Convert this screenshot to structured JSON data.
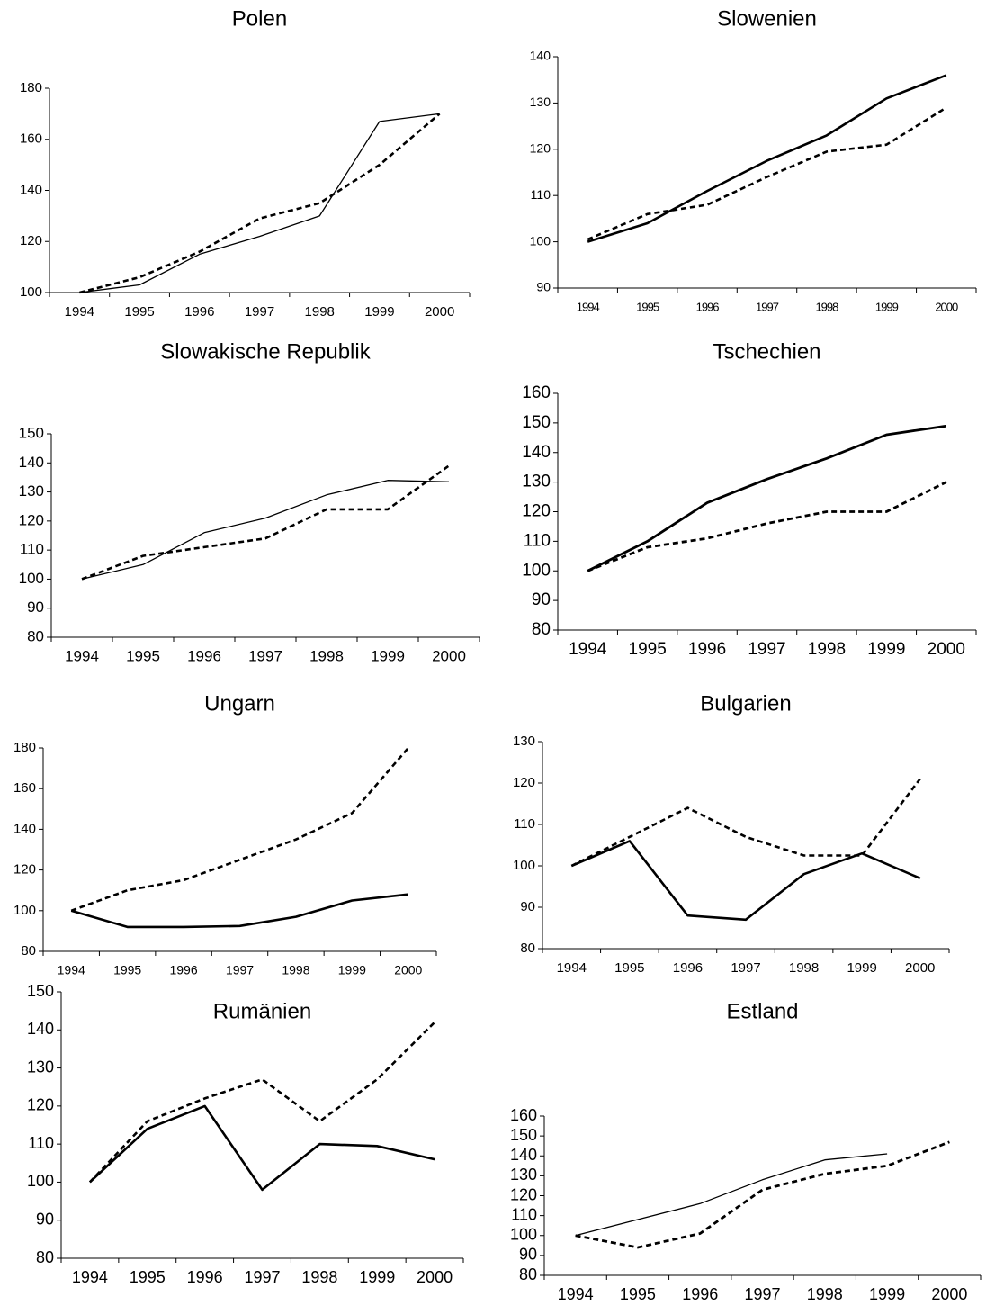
{
  "chart_data": [
    {
      "type": "line",
      "title": "Polen",
      "categories": [
        "1994",
        "1995",
        "1996",
        "1997",
        "1998",
        "1999",
        "2000"
      ],
      "ylim": [
        100,
        180
      ],
      "yticks": [
        100,
        120,
        140,
        160,
        180
      ],
      "series": [
        {
          "color": "#000000",
          "style": "solid",
          "width": 1.3,
          "values": [
            100,
            103,
            115,
            122,
            130,
            167,
            170
          ]
        },
        {
          "color": "#000000",
          "style": "dashed",
          "width": 2.6,
          "values": [
            100,
            106,
            116,
            129,
            135,
            150,
            170
          ]
        }
      ]
    },
    {
      "type": "line",
      "title": "Slowenien",
      "categories": [
        "1994",
        "1995",
        "1996",
        "1997",
        "1998",
        "1999",
        "2000"
      ],
      "ylim": [
        90,
        140
      ],
      "yticks": [
        90,
        100,
        110,
        120,
        130,
        140
      ],
      "series": [
        {
          "color": "#000000",
          "style": "solid",
          "width": 2.6,
          "values": [
            100,
            104,
            111,
            117.5,
            123,
            131,
            136
          ]
        },
        {
          "color": "#000000",
          "style": "dashed",
          "width": 2.6,
          "values": [
            100.5,
            106,
            108,
            114,
            119.5,
            121,
            129
          ]
        }
      ]
    },
    {
      "type": "line",
      "title": "Slowakische Republik",
      "categories": [
        "1994",
        "1995",
        "1996",
        "1997",
        "1998",
        "1999",
        "2000"
      ],
      "ylim": [
        80,
        150
      ],
      "yticks": [
        80,
        90,
        100,
        110,
        120,
        130,
        140,
        150
      ],
      "series": [
        {
          "color": "#000000",
          "style": "solid",
          "width": 1.3,
          "values": [
            100,
            105,
            116,
            121,
            129,
            134,
            133.5
          ]
        },
        {
          "color": "#000000",
          "style": "dashed",
          "width": 2.6,
          "values": [
            100,
            108,
            111,
            114,
            124,
            124,
            139
          ]
        }
      ]
    },
    {
      "type": "line",
      "title": "Tschechien",
      "categories": [
        "1994",
        "1995",
        "1996",
        "1997",
        "1998",
        "1999",
        "2000"
      ],
      "ylim": [
        80,
        160
      ],
      "yticks": [
        80,
        90,
        100,
        110,
        120,
        130,
        140,
        150,
        160
      ],
      "series": [
        {
          "color": "#000000",
          "style": "solid",
          "width": 2.8,
          "values": [
            100,
            110,
            123,
            131,
            138,
            146,
            149
          ]
        },
        {
          "color": "#000000",
          "style": "dashed",
          "width": 2.8,
          "values": [
            100,
            108,
            111,
            116,
            120,
            120,
            130
          ]
        }
      ]
    },
    {
      "type": "line",
      "title": "Ungarn",
      "categories": [
        "1994",
        "1995",
        "1996",
        "1997",
        "1998",
        "1999",
        "2000"
      ],
      "ylim": [
        80,
        180
      ],
      "yticks": [
        80,
        100,
        120,
        140,
        160,
        180
      ],
      "series": [
        {
          "color": "#000000",
          "style": "solid",
          "width": 2.6,
          "values": [
            100,
            92,
            92,
            92.5,
            97,
            105,
            108
          ]
        },
        {
          "color": "#000000",
          "style": "dashed",
          "width": 2.6,
          "values": [
            100,
            110,
            115,
            125,
            135,
            148,
            180
          ]
        }
      ]
    },
    {
      "type": "line",
      "title": "Bulgarien",
      "categories": [
        "1994",
        "1995",
        "1996",
        "1997",
        "1998",
        "1999",
        "2000"
      ],
      "ylim": [
        80,
        130
      ],
      "yticks": [
        80,
        90,
        100,
        110,
        120,
        130
      ],
      "series": [
        {
          "color": "#000000",
          "style": "solid",
          "width": 2.6,
          "values": [
            100,
            106,
            88,
            87,
            98,
            103,
            97
          ]
        },
        {
          "color": "#000000",
          "style": "dashed",
          "width": 2.6,
          "values": [
            100,
            107,
            114,
            107,
            102.5,
            102.5,
            121
          ]
        }
      ]
    },
    {
      "type": "line",
      "title": "Rumänien",
      "categories": [
        "1994",
        "1995",
        "1996",
        "1997",
        "1998",
        "1999",
        "2000"
      ],
      "ylim": [
        80,
        150
      ],
      "yticks": [
        80,
        90,
        100,
        110,
        120,
        130,
        140,
        150
      ],
      "series": [
        {
          "color": "#000000",
          "style": "solid",
          "width": 2.6,
          "values": [
            100,
            114,
            120,
            98,
            110,
            109.5,
            106
          ]
        },
        {
          "color": "#000000",
          "style": "dashed",
          "width": 2.6,
          "values": [
            100,
            116,
            122,
            127,
            116,
            127,
            142
          ]
        }
      ]
    },
    {
      "type": "line",
      "title": "Estland",
      "categories": [
        "1994",
        "1995",
        "1996",
        "1997",
        "1998",
        "1999",
        "2000"
      ],
      "ylim": [
        80,
        160
      ],
      "yticks": [
        80,
        90,
        100,
        110,
        120,
        130,
        140,
        150,
        160
      ],
      "series": [
        {
          "color": "#000000",
          "style": "solid",
          "width": 1.3,
          "values": [
            100,
            108,
            116,
            128,
            138,
            141,
            null
          ]
        },
        {
          "color": "#000000",
          "style": "dashed",
          "width": 2.8,
          "values": [
            100,
            94,
            101,
            123,
            131,
            135,
            147
          ]
        }
      ]
    }
  ]
}
